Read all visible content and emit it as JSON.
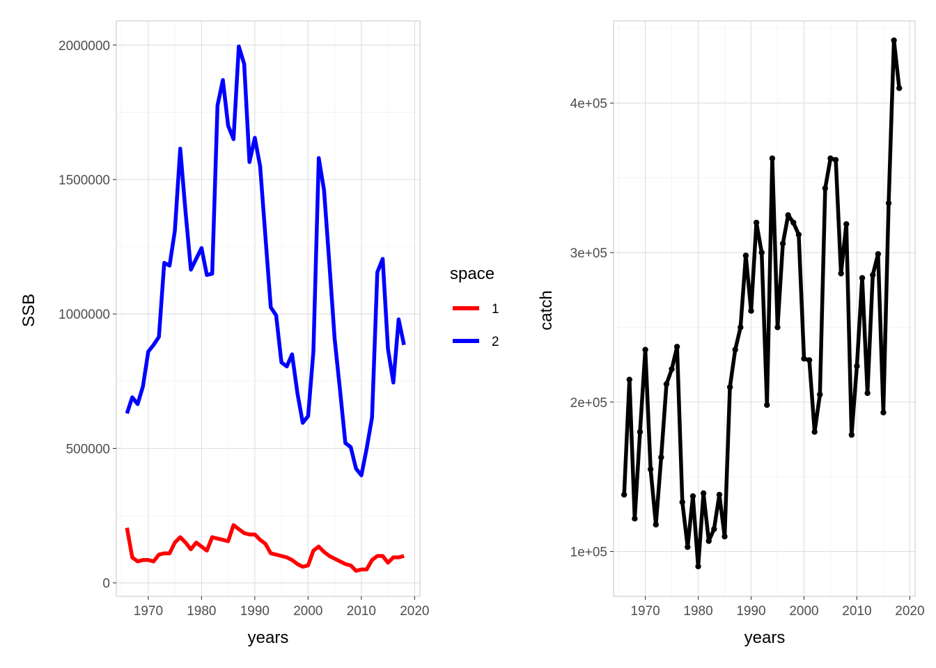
{
  "chart_data": [
    {
      "type": "line",
      "xlabel": "years",
      "ylabel": "SSB",
      "xlim": [
        1964,
        2021
      ],
      "ylim": [
        -50000,
        2090000
      ],
      "x_ticks": [
        1970,
        1980,
        1990,
        2000,
        2010,
        2020
      ],
      "y_ticks": [
        0,
        500000,
        1000000,
        1500000,
        2000000
      ],
      "grid": true,
      "legend": {
        "title": "space",
        "position": "right"
      },
      "x": [
        1966,
        1967,
        1968,
        1969,
        1970,
        1971,
        1972,
        1973,
        1974,
        1975,
        1976,
        1977,
        1978,
        1979,
        1980,
        1981,
        1982,
        1983,
        1984,
        1985,
        1986,
        1987,
        1988,
        1989,
        1990,
        1991,
        1992,
        1993,
        1994,
        1995,
        1996,
        1997,
        1998,
        1999,
        2000,
        2001,
        2002,
        2003,
        2004,
        2005,
        2006,
        2007,
        2008,
        2009,
        2010,
        2011,
        2012,
        2013,
        2014,
        2015,
        2016,
        2017,
        2018
      ],
      "series": [
        {
          "name": "1",
          "color": "#ff0000",
          "values": [
            205000,
            95000,
            80000,
            85000,
            85000,
            80000,
            105000,
            110000,
            110000,
            150000,
            170000,
            150000,
            125000,
            150000,
            135000,
            120000,
            170000,
            165000,
            160000,
            155000,
            215000,
            200000,
            185000,
            180000,
            180000,
            160000,
            145000,
            110000,
            105000,
            100000,
            95000,
            85000,
            70000,
            60000,
            65000,
            120000,
            135000,
            115000,
            100000,
            90000,
            80000,
            70000,
            65000,
            45000,
            50000,
            50000,
            85000,
            100000,
            100000,
            75000,
            95000,
            95000,
            100000
          ]
        },
        {
          "name": "2",
          "color": "#0000ff",
          "values": [
            630000,
            690000,
            665000,
            730000,
            860000,
            885000,
            915000,
            1190000,
            1180000,
            1310000,
            1615000,
            1380000,
            1165000,
            1205000,
            1245000,
            1145000,
            1150000,
            1775000,
            1870000,
            1700000,
            1650000,
            1995000,
            1930000,
            1565000,
            1655000,
            1550000,
            1285000,
            1025000,
            995000,
            820000,
            805000,
            850000,
            705000,
            595000,
            620000,
            860000,
            1580000,
            1460000,
            1185000,
            905000,
            715000,
            520000,
            505000,
            425000,
            400000,
            500000,
            615000,
            1155000,
            1205000,
            870000,
            745000,
            980000,
            885000
          ]
        }
      ]
    },
    {
      "type": "line",
      "xlabel": "years",
      "ylabel": "catch",
      "xlim": [
        1964,
        2021
      ],
      "ylim": [
        70000,
        455000
      ],
      "x_ticks": [
        1970,
        1980,
        1990,
        2000,
        2010,
        2020
      ],
      "y_ticks": [
        100000,
        200000,
        300000,
        400000
      ],
      "y_tick_labels": [
        "1e+05",
        "2e+05",
        "3e+05",
        "4e+05"
      ],
      "grid": true,
      "markers": true,
      "x": [
        1966,
        1967,
        1968,
        1969,
        1970,
        1971,
        1972,
        1973,
        1974,
        1975,
        1976,
        1977,
        1978,
        1979,
        1980,
        1981,
        1982,
        1983,
        1984,
        1985,
        1986,
        1987,
        1988,
        1989,
        1990,
        1991,
        1992,
        1993,
        1994,
        1995,
        1996,
        1997,
        1998,
        1999,
        2000,
        2001,
        2002,
        2003,
        2004,
        2005,
        2006,
        2007,
        2008,
        2009,
        2010,
        2011,
        2012,
        2013,
        2014,
        2015,
        2016,
        2017,
        2018
      ],
      "series": [
        {
          "color": "#000000",
          "values": [
            138000,
            215000,
            122000,
            180000,
            235000,
            155000,
            118000,
            163000,
            212000,
            222000,
            237000,
            133000,
            103000,
            137000,
            90000,
            139000,
            107000,
            115000,
            138000,
            110000,
            210000,
            235000,
            250000,
            298000,
            261000,
            320000,
            300000,
            198000,
            363000,
            250000,
            306000,
            325000,
            320000,
            312000,
            229000,
            228000,
            180000,
            205000,
            343000,
            363000,
            362000,
            286000,
            319000,
            178000,
            224000,
            283000,
            206000,
            285000,
            299000,
            193000,
            333000,
            442000,
            410000
          ]
        }
      ]
    }
  ]
}
